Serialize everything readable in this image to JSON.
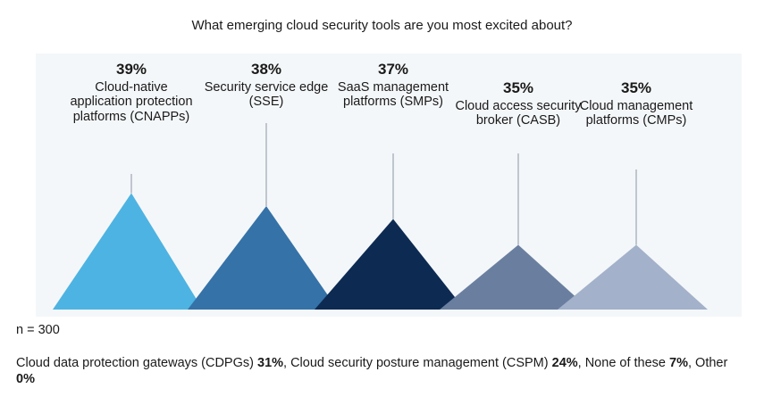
{
  "chart_data": {
    "type": "bar",
    "title": "What emerging cloud security tools are you most excited about?",
    "categories": [
      "Cloud-native application protection platforms (CNAPPs)",
      "Security service edge (SSE)",
      "SaaS management platforms (SMPs)",
      "Cloud access security broker (CASB)",
      "Cloud management platforms (CMPs)"
    ],
    "values": [
      39,
      38,
      37,
      35,
      35
    ],
    "value_labels": [
      "39%",
      "38%",
      "37%",
      "35%",
      "35%"
    ],
    "colors": [
      "#4db3e2",
      "#3572a8",
      "#0d2a52",
      "#6a7fa0",
      "#a3b1ca"
    ],
    "unit": "%"
  },
  "sample": "n = 300",
  "footnote": [
    {
      "text": "Cloud data protection gateways (CDPGs) ",
      "bold": false
    },
    {
      "text": "31%",
      "bold": true
    },
    {
      "text": ", Cloud security posture management (CSPM) ",
      "bold": false
    },
    {
      "text": "24%",
      "bold": true
    },
    {
      "text": ", None of these ",
      "bold": false
    },
    {
      "text": "7%",
      "bold": true
    },
    {
      "text": ", Other ",
      "bold": false
    },
    {
      "text": "0%",
      "bold": true
    }
  ]
}
